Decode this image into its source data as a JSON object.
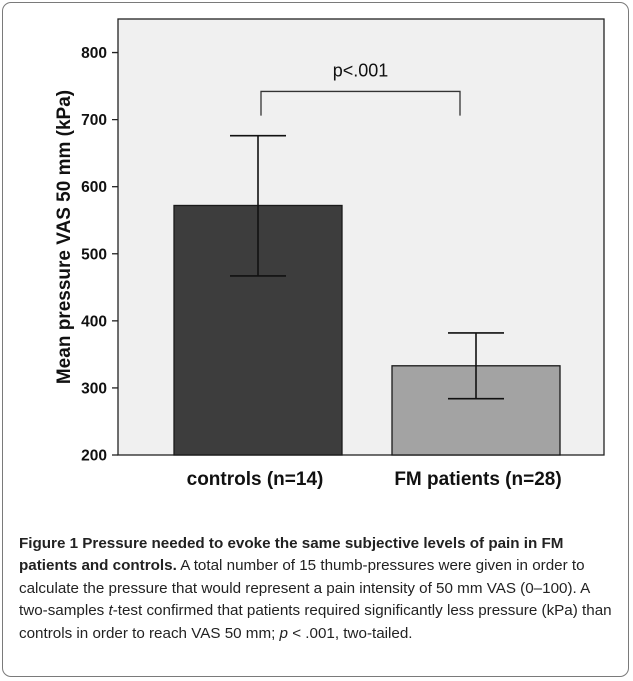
{
  "chart_data": {
    "type": "bar",
    "categories": [
      "controls (n=14)",
      "FM patients (n=28)"
    ],
    "values": [
      572,
      333
    ],
    "error_low": [
      467,
      284
    ],
    "error_high": [
      676,
      382
    ],
    "bar_colors": [
      "#3d3d3d",
      "#a3a3a3"
    ],
    "ylabel": "Mean pressure VAS 50 mm (kPa)",
    "ylim": [
      200,
      850
    ],
    "yticks": [
      200,
      300,
      400,
      500,
      600,
      700,
      800
    ],
    "grid": false,
    "annotation": {
      "text": "p<.001",
      "between": [
        0,
        1
      ],
      "level": 742,
      "drop_to": 706
    }
  },
  "caption": {
    "title": "Figure 1 Pressure needed to evoke the same subjective levels of pain in FM patients and controls.",
    "body_1": " A total number of 15 thumb-pressures were given in order to calculate the pressure that would represent a pain intensity of 50 mm VAS (0–100). A two-samples ",
    "body_t": "t",
    "body_2": "-test confirmed that patients required significantly less pressure (kPa) than controls in order to reach VAS 50 mm; ",
    "body_p": "p",
    "body_3": " < .001, two-tailed."
  }
}
